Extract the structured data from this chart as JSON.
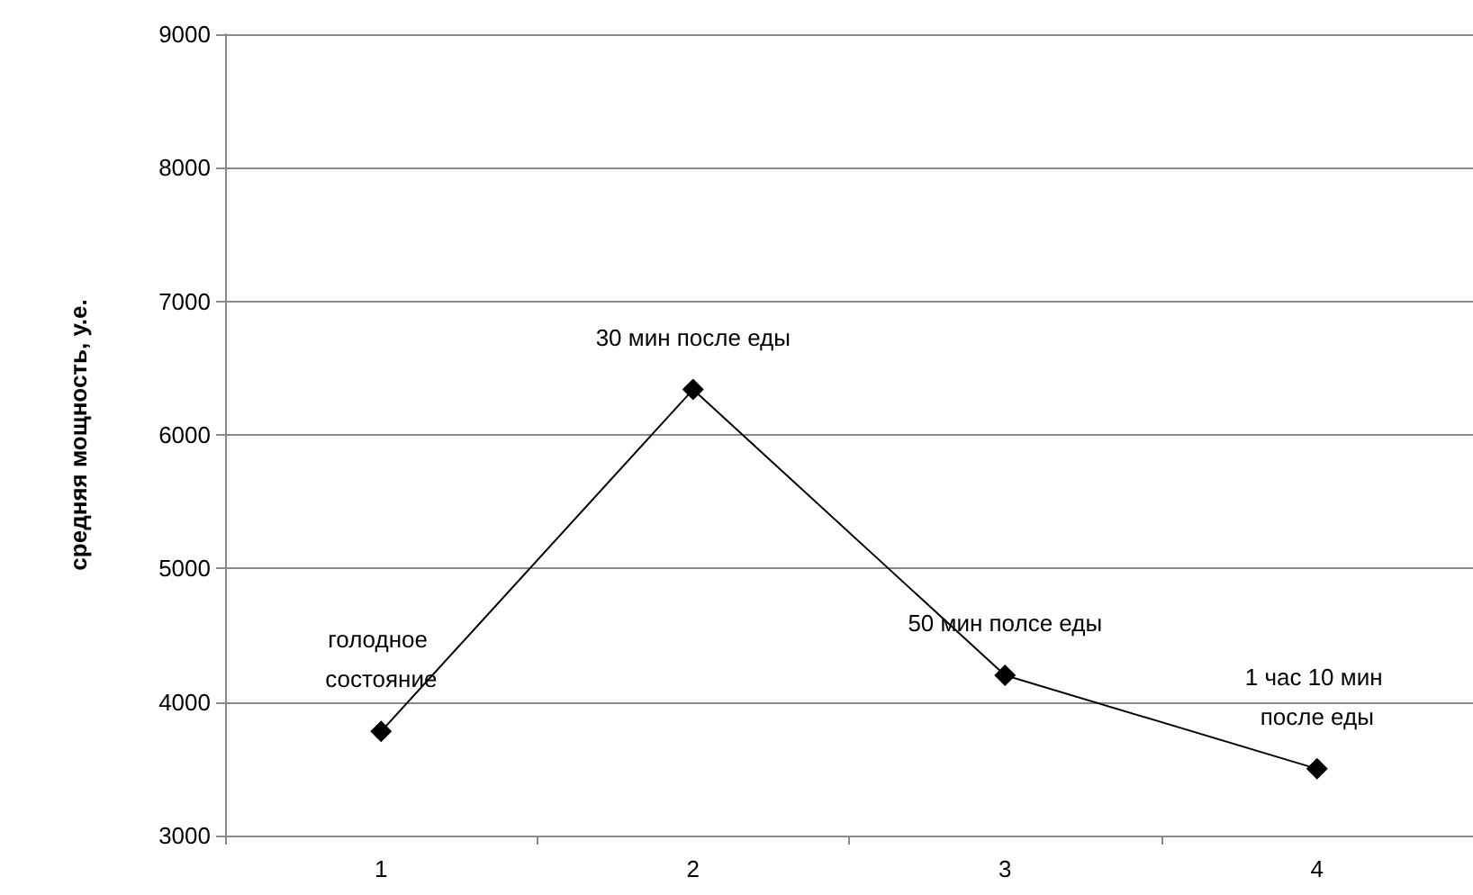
{
  "chart_data": {
    "type": "line",
    "ylabel": "средняя мощность, у.е.",
    "categories": [
      "1",
      "2",
      "3",
      "4"
    ],
    "series": [
      {
        "color": "#000000",
        "values": [
          3780,
          6340,
          4200,
          3500
        ]
      }
    ],
    "ylim": [
      3000,
      9000
    ],
    "yticks": [
      3000,
      4000,
      5000,
      6000,
      7000,
      8000,
      9000
    ],
    "grid": "y",
    "marker": "diamond",
    "line_style": "solid",
    "annotations": [
      {
        "text": "голодное состояние",
        "x": "1",
        "y": 3780
      },
      {
        "text": "30 мин после еды",
        "x": "2",
        "y": 6340
      },
      {
        "text": "50 мин полсе еды",
        "x": "3",
        "y": 4200
      },
      {
        "text": "1 час 10 мин после еды",
        "x": "4",
        "y": 3500
      }
    ]
  }
}
